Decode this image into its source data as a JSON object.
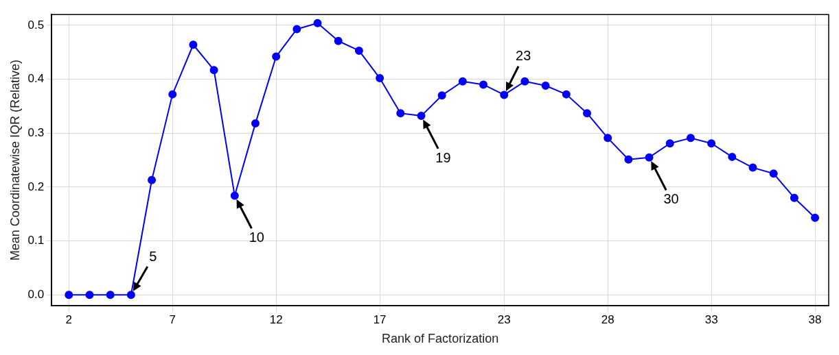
{
  "chart_data": {
    "type": "line",
    "xlabel": "Rank of Factorization",
    "ylabel": "Mean Coordinatewise IQR (Relative)",
    "x": [
      2,
      3,
      4,
      5,
      6,
      7,
      8,
      9,
      10,
      11,
      12,
      13,
      14,
      15,
      16,
      17,
      18,
      19,
      20,
      21,
      22,
      23,
      24,
      25,
      26,
      27,
      28,
      29,
      30,
      31,
      32,
      33,
      34,
      35,
      36,
      37,
      38
    ],
    "series": [
      {
        "color": "#0000ff",
        "values": [
          0,
          0,
          0,
          0,
          0.213,
          0.372,
          0.464,
          0.417,
          0.184,
          0.318,
          0.442,
          0.493,
          0.504,
          0.471,
          0.453,
          0.402,
          0.337,
          0.332,
          0.37,
          0.396,
          0.39,
          0.371,
          0.396,
          0.388,
          0.372,
          0.337,
          0.291,
          0.251,
          0.255,
          0.281,
          0.291,
          0.281,
          0.256,
          0.236,
          0.225,
          0.18,
          0.143
        ]
      }
    ],
    "xlim": [
      1.17,
      38.66
    ],
    "ylim": [
      -0.02,
      0.52
    ],
    "xticks": [
      2,
      7,
      12,
      17,
      23,
      28,
      33,
      38
    ],
    "yticks": [
      {
        "value": 0,
        "label": "0.0"
      },
      0.1,
      0.2,
      0.3,
      0.4,
      0.5
    ],
    "annotations": [
      {
        "text": "5",
        "x": 5,
        "y": 0
      },
      {
        "text": "10",
        "x": 10,
        "y": 0.184
      },
      {
        "text": "19",
        "x": 19,
        "y": 0.332
      },
      {
        "text": "23",
        "x": 23,
        "y": 0.371
      },
      {
        "text": "30",
        "x": 30,
        "y": 0.255
      }
    ],
    "grid": true,
    "legend": false,
    "marker": "circle",
    "line_style": "solid"
  }
}
